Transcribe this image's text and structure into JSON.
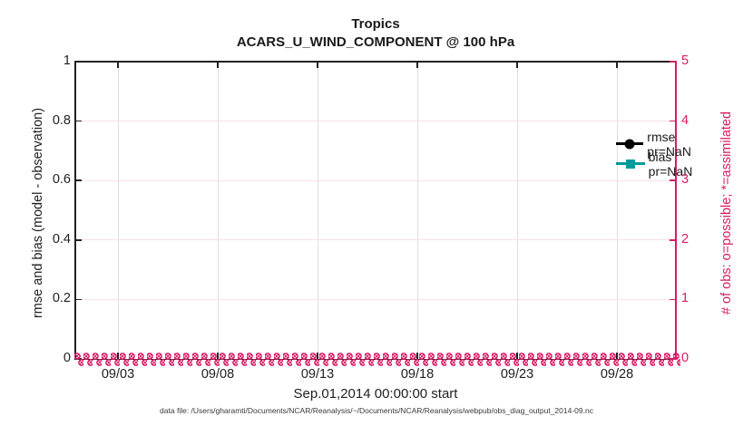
{
  "figure": {
    "title_line1": "Tropics",
    "title_line2": "ACARS_U_WIND_COMPONENT @ 100 hPa",
    "xlabel": "Sep.01,2014 00:00:00 start",
    "ylabel_left": "rmse and bias (model - observation)",
    "ylabel_right": "# of obs: o=possible; *=assimilated",
    "caption": "data file: /Users/gharamti/Documents/NCAR/Reanalysis/~/Documents/NCAR/Reanalysis/webpub/obs_diag_output_2014-09.nc",
    "colors": {
      "left_axis": "#212121",
      "right_axis": "#D91A66",
      "rmse_black": "#000000",
      "bias_teal": "#009999",
      "grid_vertical": "#dedede",
      "grid_horizontal": "#f8e0ea"
    }
  },
  "legend": {
    "items": [
      {
        "label": "rmse pr=NaN",
        "marker": "filled-circle",
        "color": "#000000"
      },
      {
        "label": "bias pr=NaN",
        "marker": "filled-square",
        "color": "#009999"
      }
    ]
  },
  "axes": {
    "x_ticks": [
      "09/03",
      "09/08",
      "09/13",
      "09/18",
      "09/23",
      "09/28"
    ],
    "y_left_ticks": [
      "1",
      "0.8",
      "0.6",
      "0.4",
      "0.2",
      "0"
    ],
    "y_right_ticks": [
      "5",
      "4",
      "3",
      "2",
      "1",
      "0"
    ]
  },
  "chart_data": {
    "type": "line",
    "title": "Tropics",
    "subtitle": "ACARS_U_WIND_COMPONENT @ 100 hPa",
    "xlabel": "Sep.01,2014 00:00:00 start",
    "ylabel_left": "rmse and bias (model - observation)",
    "ylabel_right": "# of obs: o=possible; *=assimilated",
    "x_tick_labels": [
      "09/03",
      "09/08",
      "09/13",
      "09/18",
      "09/23",
      "09/28"
    ],
    "x_range": [
      "2014-09-01 00:00:00",
      "2014-09-30"
    ],
    "ylim_left": [
      0,
      1
    ],
    "yticks_left": [
      0,
      0.2,
      0.4,
      0.6,
      0.8,
      1
    ],
    "ylim_right": [
      0,
      5
    ],
    "yticks_right": [
      0,
      1,
      2,
      3,
      4,
      5
    ],
    "grid": true,
    "legend_position": "upper-right-inside",
    "series": [
      {
        "name": "rmse pr=NaN",
        "axis": "left",
        "color": "#000000",
        "marker": "filled-circle",
        "values": "all NaN - no curve visible"
      },
      {
        "name": "bias pr=NaN",
        "axis": "left",
        "color": "#009999",
        "marker": "filled-square",
        "values": "all NaN - no curve visible"
      },
      {
        "name": "# of obs possible (o markers)",
        "axis": "right",
        "color": "#D91A66",
        "marker": "o",
        "values": "approximately 0 at every time step Sep 1 - Sep 30, dense marker band along y=0"
      },
      {
        "name": "# of obs assimilated (* markers)",
        "axis": "right",
        "color": "#D91A66",
        "marker": "*",
        "values": "approximately 0 at every time step Sep 1 - Sep 30, dense marker band along y=0"
      }
    ]
  }
}
